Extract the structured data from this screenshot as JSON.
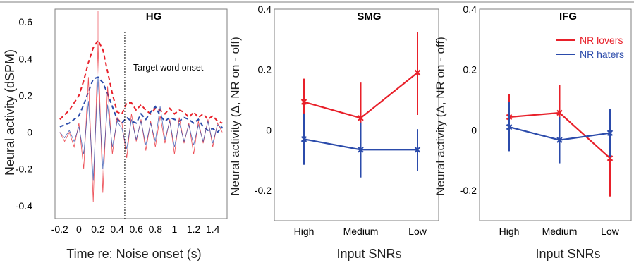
{
  "colors": {
    "red": "#e8202a",
    "blue": "#2b4bab",
    "axis": "#000000",
    "frame": "#7f7f7f"
  },
  "chart_data": [
    {
      "type": "line",
      "title": "HG",
      "xlabel": "Time re: Noise onset (s)",
      "ylabel": "Neural activity (dSPM)",
      "xlim": [
        -0.25,
        1.55
      ],
      "ylim": [
        -0.47,
        0.67
      ],
      "xticks": [
        "-0.2",
        "0",
        "0.2",
        "0.4",
        "0.6",
        "0.8",
        "1",
        "1.2",
        "1.4"
      ],
      "yticks": [
        "-0.4",
        "-0.2",
        "0",
        "0.2",
        "0.4",
        "0.6"
      ],
      "annotation": "Target word onset",
      "annotation_x": 0.48,
      "series": [
        {
          "style": "dashed",
          "color": "red",
          "x": [
            -0.2,
            -0.1,
            0.0,
            0.05,
            0.1,
            0.15,
            0.2,
            0.25,
            0.3,
            0.35,
            0.4,
            0.45,
            0.5,
            0.55,
            0.6,
            0.65,
            0.7,
            0.75,
            0.8,
            0.85,
            0.9,
            0.95,
            1.0,
            1.05,
            1.1,
            1.15,
            1.2,
            1.25,
            1.3,
            1.35,
            1.4,
            1.45,
            1.5
          ],
          "values": [
            0.07,
            0.12,
            0.2,
            0.28,
            0.38,
            0.46,
            0.5,
            0.45,
            0.33,
            0.21,
            0.11,
            0.1,
            0.16,
            0.16,
            0.12,
            0.15,
            0.12,
            0.1,
            0.13,
            0.12,
            0.1,
            0.13,
            0.1,
            0.12,
            0.11,
            0.08,
            0.11,
            0.08,
            0.1,
            0.07,
            0.09,
            0.06,
            0.05
          ]
        },
        {
          "style": "dashed",
          "color": "blue",
          "x": [
            -0.2,
            -0.1,
            0.0,
            0.05,
            0.1,
            0.15,
            0.2,
            0.25,
            0.3,
            0.35,
            0.4,
            0.45,
            0.5,
            0.55,
            0.6,
            0.65,
            0.7,
            0.75,
            0.8,
            0.85,
            0.9,
            0.95,
            1.0,
            1.05,
            1.1,
            1.15,
            1.2,
            1.25,
            1.3,
            1.35,
            1.4,
            1.45,
            1.5
          ],
          "values": [
            0.03,
            0.05,
            0.09,
            0.15,
            0.22,
            0.29,
            0.3,
            0.27,
            0.21,
            0.14,
            0.07,
            0.05,
            0.08,
            0.06,
            0.05,
            0.1,
            0.07,
            0.11,
            0.14,
            0.09,
            0.06,
            0.08,
            0.07,
            0.06,
            0.08,
            0.07,
            0.05,
            0.07,
            0.03,
            0.01,
            0.02,
            0.0,
            0.03
          ]
        },
        {
          "style": "solid-thin",
          "color": "red",
          "x": [
            -0.2,
            -0.15,
            -0.1,
            -0.05,
            0.0,
            0.05,
            0.1,
            0.15,
            0.2,
            0.25,
            0.3,
            0.35,
            0.4,
            0.45,
            0.5,
            0.55,
            0.6,
            0.65,
            0.7,
            0.75,
            0.8,
            0.85,
            0.9,
            0.95,
            1.0,
            1.05,
            1.1,
            1.15,
            1.2,
            1.25,
            1.3,
            1.35,
            1.4,
            1.45,
            1.5
          ],
          "values": [
            0.0,
            -0.05,
            0.0,
            -0.08,
            0.05,
            -0.2,
            0.3,
            -0.38,
            0.48,
            -0.33,
            0.25,
            -0.12,
            0.08,
            0.05,
            -0.14,
            0.1,
            -0.05,
            0.07,
            -0.1,
            0.06,
            -0.08,
            0.09,
            -0.06,
            0.07,
            -0.12,
            0.08,
            -0.06,
            0.05,
            -0.12,
            0.06,
            -0.06,
            0.07,
            -0.08,
            0.05,
            0.0
          ]
        },
        {
          "style": "solid-thin",
          "color": "blue",
          "x": [
            -0.2,
            -0.15,
            -0.1,
            -0.05,
            0.0,
            0.05,
            0.1,
            0.15,
            0.2,
            0.25,
            0.3,
            0.35,
            0.4,
            0.45,
            0.5,
            0.55,
            0.6,
            0.65,
            0.7,
            0.75,
            0.8,
            0.85,
            0.9,
            0.95,
            1.0,
            1.05,
            1.1,
            1.15,
            1.2,
            1.25,
            1.3,
            1.35,
            1.4,
            1.45,
            1.5
          ],
          "values": [
            0.0,
            -0.03,
            0.01,
            -0.05,
            0.03,
            -0.12,
            0.17,
            -0.26,
            0.3,
            -0.2,
            0.15,
            -0.08,
            0.06,
            0.02,
            -0.09,
            0.07,
            -0.04,
            0.06,
            -0.07,
            0.05,
            -0.05,
            0.14,
            -0.04,
            0.06,
            -0.08,
            0.05,
            -0.05,
            0.04,
            -0.07,
            0.04,
            -0.05,
            0.06,
            -0.06,
            0.04,
            0.02
          ]
        }
      ],
      "peak_error_bar": {
        "x": 0.2,
        "low": 0.45,
        "high": 0.66
      }
    },
    {
      "type": "line",
      "title": "SMG",
      "xlabel": "Input SNRs",
      "ylabel": "Neural activity (Δ, NR on - off)",
      "categories": [
        "High",
        "Medium",
        "Low"
      ],
      "ylim": [
        -0.3,
        0.4
      ],
      "yticks": [
        "-0.2",
        "0",
        "0.2",
        "0.4"
      ],
      "series": [
        {
          "name": "NR lovers",
          "color": "red",
          "values": [
            0.093,
            0.04,
            0.19
          ],
          "err_low": [
            0.02,
            -0.075,
            0.05
          ],
          "err_high": [
            0.17,
            0.157,
            0.325
          ]
        },
        {
          "name": "NR haters",
          "color": "blue",
          "values": [
            -0.03,
            -0.065,
            -0.065
          ],
          "err_low": [
            -0.115,
            -0.157,
            -0.135
          ],
          "err_high": [
            0.055,
            0.025,
            0.003
          ]
        }
      ]
    },
    {
      "type": "line",
      "title": "IFG",
      "xlabel": "Input SNRs",
      "ylabel": "Neural activity (Δ, NR on - off)",
      "categories": [
        "High",
        "Medium",
        "Low"
      ],
      "ylim": [
        -0.3,
        0.4
      ],
      "yticks": [
        "-0.2",
        "0",
        "0.2",
        "0.4"
      ],
      "legend": {
        "position": "top-right",
        "entries": [
          "NR lovers",
          "NR haters"
        ]
      },
      "series": [
        {
          "name": "NR lovers",
          "color": "red",
          "values": [
            0.043,
            0.057,
            -0.093
          ],
          "err_low": [
            -0.035,
            -0.035,
            -0.22
          ],
          "err_high": [
            0.118,
            0.15,
            0.037
          ]
        },
        {
          "name": "NR haters",
          "color": "blue",
          "values": [
            0.01,
            -0.033,
            -0.01
          ],
          "err_low": [
            -0.07,
            -0.11,
            -0.09
          ],
          "err_high": [
            0.093,
            0.043,
            0.07
          ]
        }
      ]
    }
  ]
}
